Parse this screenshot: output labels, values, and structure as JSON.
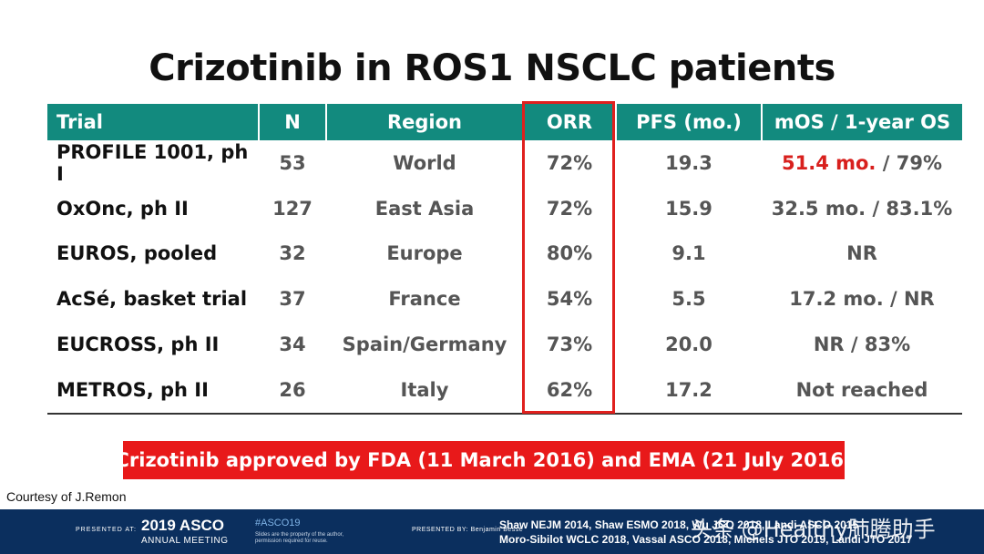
{
  "title": "Crizotinib in ROS1 NSCLC patients",
  "table": {
    "headers": [
      "Trial",
      "N",
      "Region",
      "ORR",
      "PFS (mo.)",
      "mOS / 1-year OS"
    ],
    "rows": [
      {
        "trial": "PROFILE 1001, ph I",
        "n": "53",
        "region": "World",
        "orr": "72%",
        "pfs": "19.3",
        "os_highlight": "51.4 mo.",
        "os_rest": " / 79%"
      },
      {
        "trial": "OxOnc, ph II",
        "n": "127",
        "region": "East Asia",
        "orr": "72%",
        "pfs": "15.9",
        "os": "32.5 mo. / 83.1%"
      },
      {
        "trial": "EUROS, pooled",
        "n": "32",
        "region": "Europe",
        "orr": "80%",
        "pfs": "9.1",
        "os": "NR"
      },
      {
        "trial": "AcSé, basket trial",
        "n": "37",
        "region": "France",
        "orr": "54%",
        "pfs": "5.5",
        "os": "17.2 mo. / NR"
      },
      {
        "trial": "EUCROSS, ph II",
        "n": "34",
        "region": "Spain/Germany",
        "orr": "73%",
        "pfs": "20.0",
        "os": "NR / 83%"
      },
      {
        "trial": "METROS, ph II",
        "n": "26",
        "region": "Italy",
        "orr": "62%",
        "pfs": "17.2",
        "os": "Not reached"
      }
    ]
  },
  "banner": "Crizotinib approved by FDA (11 March 2016) and EMA (21 July 2016)",
  "courtesy": "Courtesy of J.Remon",
  "footer": {
    "presented_at": "PRESENTED AT:",
    "asco_year": "2019 ASCO",
    "asco_sub": "ANNUAL MEETING",
    "hashtag": "#ASCO19",
    "disclaimer": "Slides are the property of the author, permission required for reuse.",
    "presented_by": "PRESENTED BY: Benjamin Besse",
    "ref_line1": "Shaw NEJM 2014, Shaw ESMO 2018, Wu JCO 2018, Landi ASCO 2015",
    "ref_line2": "Moro-Sibilot WCLC 2018, Vassal ASCO 2018, Michels JTO 2019, Landi JTO 2017"
  },
  "watermark": "头条 @Healthy肺腾助手",
  "colors": {
    "header_teal": "#128a7e",
    "highlight_red": "#d8201d",
    "banner_red": "#e8191a",
    "footer_navy": "#0b2f5e"
  }
}
